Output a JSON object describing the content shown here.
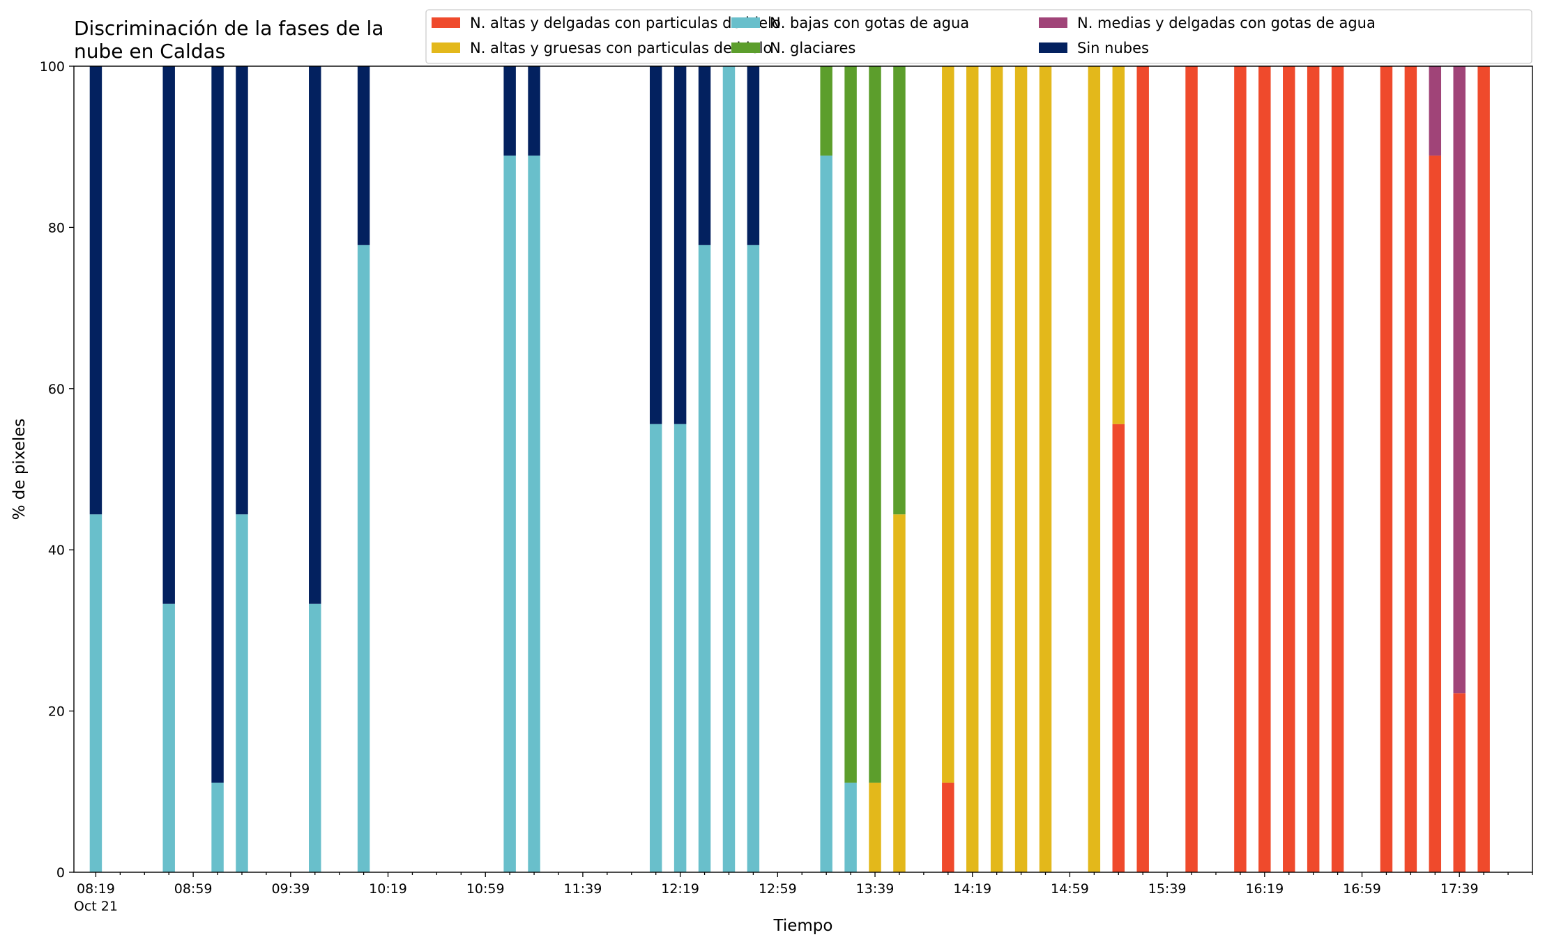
{
  "chart_data": {
    "type": "bar",
    "stacked": true,
    "title_lines": [
      "Discriminación de la fases de la",
      "nube en Caldas"
    ],
    "xlabel": "Tiempo",
    "ylabel": "% de pixeles",
    "ylim": [
      0,
      100
    ],
    "yticks": [
      "0",
      "20",
      "40",
      "60",
      "80",
      "100"
    ],
    "xlim_minutes": [
      -9,
      590
    ],
    "x_tick_labels": [
      "08:19",
      "08:59",
      "09:39",
      "10:19",
      "10:59",
      "11:39",
      "12:19",
      "12:59",
      "13:39",
      "14:19",
      "14:59",
      "15:39",
      "16:19",
      "16:59",
      "17:39"
    ],
    "x_date_label": "Oct 21",
    "x_minor_step_minutes": 10,
    "x_major_step_minutes": 40,
    "x_axis_start": "08:19",
    "bar_width_minutes": 5,
    "legend_position": "top-right",
    "series": [
      {
        "key": "thin_ice",
        "name": "N. altas y delgadas con particulas de hielo",
        "color": "#ef4a2c"
      },
      {
        "key": "thick_ice",
        "name": "N. altas y gruesas con particulas de hielo",
        "color": "#e3b81b"
      },
      {
        "key": "low_water",
        "name": "N. bajas con gotas de agua",
        "color": "#69bfcb"
      },
      {
        "key": "glacier",
        "name": "N. glaciares",
        "color": "#5c9e2c"
      },
      {
        "key": "mid_water",
        "name": "N. medias y delgadas con gotas de agua",
        "color": "#a04478"
      },
      {
        "key": "clear",
        "name": "Sin nubes",
        "color": "#03215f"
      }
    ],
    "stack_order": [
      "thin_ice",
      "thick_ice",
      "low_water",
      "glacier",
      "mid_water",
      "clear"
    ],
    "bars": [
      {
        "t": "08:19",
        "low_water": 44.4,
        "clear": 55.6
      },
      {
        "t": "08:49",
        "low_water": 33.3,
        "clear": 66.7
      },
      {
        "t": "09:09",
        "low_water": 11.1,
        "clear": 88.9
      },
      {
        "t": "09:19",
        "low_water": 44.4,
        "clear": 55.6
      },
      {
        "t": "09:49",
        "low_water": 33.3,
        "clear": 66.7
      },
      {
        "t": "10:09",
        "low_water": 77.8,
        "clear": 22.2
      },
      {
        "t": "11:09",
        "low_water": 88.9,
        "clear": 11.1
      },
      {
        "t": "11:19",
        "low_water": 88.9,
        "clear": 11.1
      },
      {
        "t": "12:09",
        "low_water": 55.6,
        "clear": 44.4
      },
      {
        "t": "12:19",
        "low_water": 55.6,
        "clear": 44.4
      },
      {
        "t": "12:29",
        "low_water": 77.8,
        "clear": 22.2
      },
      {
        "t": "12:39",
        "low_water": 100
      },
      {
        "t": "12:49",
        "low_water": 77.8,
        "clear": 22.2
      },
      {
        "t": "13:19",
        "low_water": 88.9,
        "glacier": 11.1
      },
      {
        "t": "13:29",
        "low_water": 11.1,
        "glacier": 88.9
      },
      {
        "t": "13:39",
        "thick_ice": 11.1,
        "glacier": 88.9
      },
      {
        "t": "13:49",
        "thick_ice": 44.4,
        "glacier": 55.6
      },
      {
        "t": "14:09",
        "thin_ice": 11.1,
        "thick_ice": 88.9
      },
      {
        "t": "14:19",
        "thick_ice": 100
      },
      {
        "t": "14:29",
        "thick_ice": 100
      },
      {
        "t": "14:39",
        "thick_ice": 100
      },
      {
        "t": "14:49",
        "thick_ice": 100
      },
      {
        "t": "15:09",
        "thick_ice": 100
      },
      {
        "t": "15:19",
        "thin_ice": 55.6,
        "thick_ice": 44.4
      },
      {
        "t": "15:29",
        "thin_ice": 100
      },
      {
        "t": "15:49",
        "thin_ice": 100
      },
      {
        "t": "16:09",
        "thin_ice": 100
      },
      {
        "t": "16:19",
        "thin_ice": 100
      },
      {
        "t": "16:29",
        "thin_ice": 100
      },
      {
        "t": "16:39",
        "thin_ice": 100
      },
      {
        "t": "16:49",
        "thin_ice": 100
      },
      {
        "t": "17:09",
        "thin_ice": 100
      },
      {
        "t": "17:19",
        "thin_ice": 100
      },
      {
        "t": "17:29",
        "thin_ice": 88.9,
        "mid_water": 11.1
      },
      {
        "t": "17:39",
        "thin_ice": 22.2,
        "mid_water": 77.8
      },
      {
        "t": "17:49",
        "thin_ice": 100
      }
    ]
  }
}
